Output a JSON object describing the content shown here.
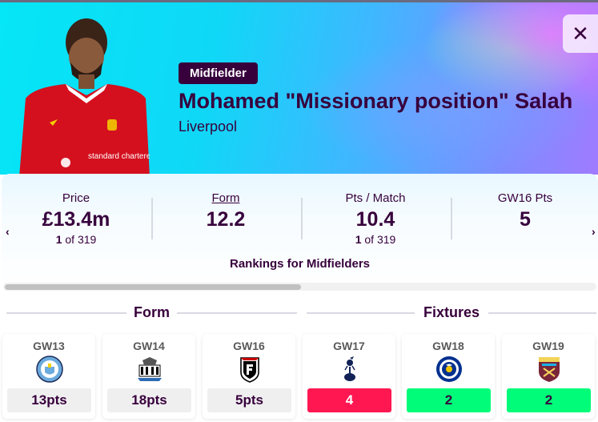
{
  "header": {
    "position": "Midfielder",
    "name": "Mohamed \"Missionary position\" Salah",
    "team": "Liverpool",
    "close_label": "✕",
    "close_icon": "close-icon",
    "shirt_sponsor": "standard chartered"
  },
  "stats": {
    "items": [
      {
        "label": "Price",
        "value": "£13.4m",
        "rank": "1",
        "rank_suffix": " of 319"
      },
      {
        "label": "Form",
        "value": "12.2"
      },
      {
        "label": "Pts / Match",
        "value": "10.4",
        "rank": "1",
        "rank_suffix": " of 319"
      },
      {
        "label": "GW16 Pts",
        "value": "5"
      }
    ],
    "note": "Rankings for Midfielders",
    "prev_arrow": "‹",
    "next_arrow": "›"
  },
  "form": {
    "title": "Form",
    "games": [
      {
        "gw": "GW13",
        "crest": "man-city-crest-icon",
        "pts": "13pts"
      },
      {
        "gw": "GW14",
        "crest": "newcastle-crest-icon",
        "pts": "18pts"
      },
      {
        "gw": "GW16",
        "crest": "fulham-crest-icon",
        "pts": "5pts"
      }
    ]
  },
  "fixtures": {
    "title": "Fixtures",
    "games": [
      {
        "gw": "GW17",
        "crest": "tottenham-crest-icon",
        "difficulty": "4",
        "color": "#ff1751",
        "text_color": "#ffffff"
      },
      {
        "gw": "GW18",
        "crest": "leicester-crest-icon",
        "difficulty": "2",
        "color": "#01fc7a",
        "text_color": "#37003c"
      },
      {
        "gw": "GW19",
        "crest": "west-ham-crest-icon",
        "difficulty": "2",
        "color": "#01fc7a",
        "text_color": "#37003c"
      }
    ]
  },
  "colors": {
    "brand_purple": "#37003c",
    "form_box": "#efefef"
  }
}
